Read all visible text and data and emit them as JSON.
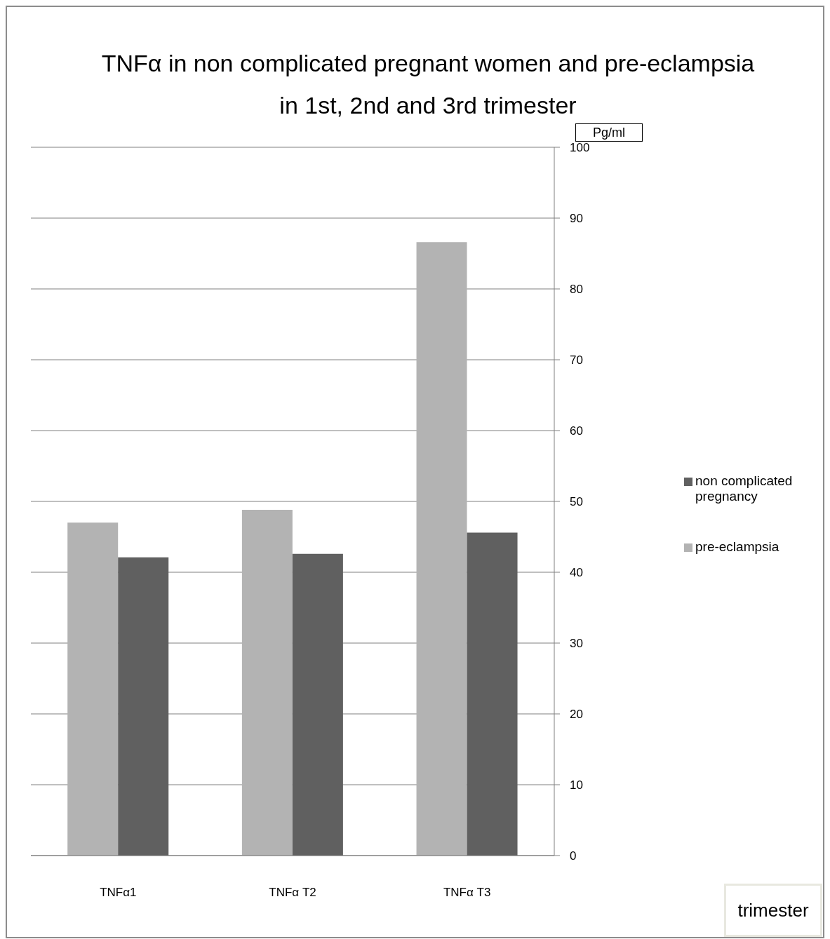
{
  "chart_data": {
    "type": "bar",
    "title": "TNFα in non complicated pregnant women and pre-eclampsia in 1st, 2nd and 3rd trimester",
    "ylabel": "Pg/ml",
    "annotations": [
      "trimester"
    ],
    "categories": [
      "TNFα1",
      "TNFα T2",
      "TNFα T3"
    ],
    "series": [
      {
        "name": "pre-eclampsia",
        "color": "#b3b3b3",
        "values": [
          47,
          48.8,
          86.6
        ]
      },
      {
        "name": "non complicated pregnancy",
        "color": "#606060",
        "values": [
          42.1,
          42.6,
          45.6
        ]
      }
    ],
    "ylim": [
      0,
      100
    ],
    "yticks": [
      0,
      10,
      20,
      30,
      40,
      50,
      60,
      70,
      80,
      90,
      100
    ],
    "grid": "y",
    "legend": "right"
  }
}
